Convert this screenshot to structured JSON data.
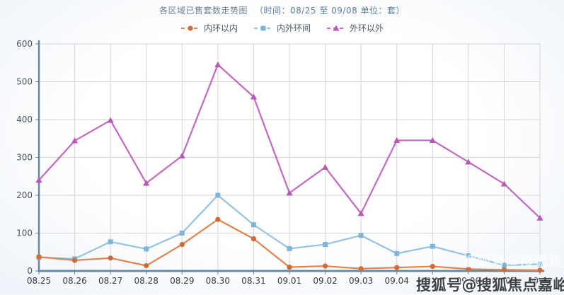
{
  "title": {
    "main": "各区域已售套数走势图",
    "meta": "（时间：08/25 至 09/08 单位：套）"
  },
  "watermark": {
    "text": "搜狐号@搜狐焦点嘉峪关站"
  },
  "chart_data": {
    "type": "line",
    "title": "各区域已售套数走势图（时间：08/25 至 09/08 单位：套）",
    "x": [
      "08.25",
      "08.26",
      "08.27",
      "08.28",
      "08.29",
      "08.30",
      "08.31",
      "09.01",
      "09.02",
      "09.03",
      "09.04",
      "09.05",
      "09.06",
      "09.07",
      "09.08"
    ],
    "series": [
      {
        "name": "内环以内",
        "marker": "circle",
        "color": "#e08350",
        "marker_color": "#d06a36",
        "values": [
          37,
          28,
          34,
          14,
          70,
          136,
          85,
          10,
          13,
          6,
          9,
          12,
          5,
          3,
          2
        ]
      },
      {
        "name": "内外环间",
        "marker": "square",
        "color": "#93c3e3",
        "marker_color": "#7eb6da",
        "values": [
          36,
          32,
          77,
          58,
          100,
          200,
          122,
          59,
          70,
          94,
          46,
          65,
          40,
          15,
          18
        ]
      },
      {
        "name": "外环以外",
        "marker": "triangle",
        "color": "#c168c1",
        "marker_color": "#b75ab7",
        "values": [
          240,
          344,
          398,
          232,
          304,
          545,
          460,
          206,
          274,
          152,
          345,
          345,
          288,
          230,
          140
        ]
      }
    ],
    "ylim": [
      0,
      600
    ],
    "yticks": [
      0,
      100,
      200,
      300,
      400,
      500,
      600
    ],
    "xlabel": "",
    "ylabel": "",
    "grid": true,
    "legend_position": "top",
    "axis_color": "#5e87a3",
    "grid_color": "#d4d4d4"
  }
}
